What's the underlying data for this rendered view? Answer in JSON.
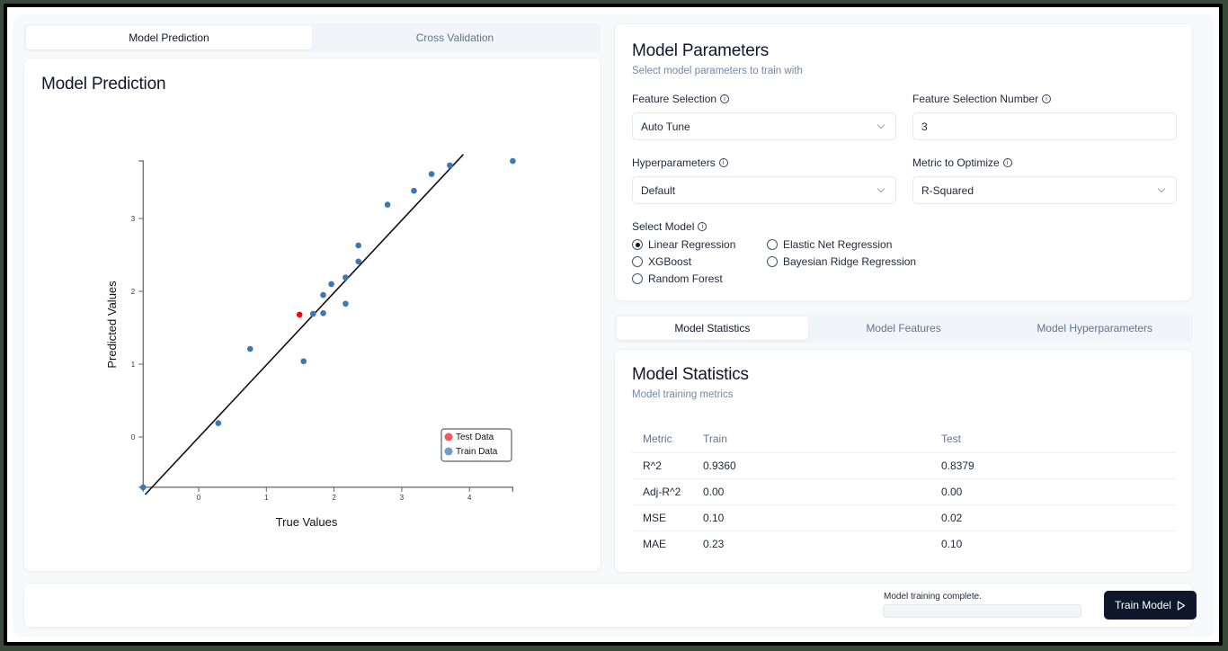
{
  "left_tabs": [
    {
      "label": "Model Prediction",
      "active": true
    },
    {
      "label": "Cross Validation",
      "active": false
    }
  ],
  "prediction_card": {
    "title": "Model Prediction"
  },
  "chart_data": {
    "type": "scatter",
    "title": "Model Prediction",
    "xlabel": "True Values",
    "ylabel": "Predicted Values",
    "x_ticks": [
      0,
      1,
      2,
      3,
      4
    ],
    "y_ticks": [
      0,
      1,
      2,
      3
    ],
    "xlim": [
      -0.82,
      4.64
    ],
    "ylim": [
      -0.69,
      3.79
    ],
    "grid": false,
    "legend_position": "lower right",
    "legend": [
      {
        "label": "Test Data",
        "color": "#f05a5a"
      },
      {
        "label": "Train Data",
        "color": "#6f9dcb"
      }
    ],
    "series": [
      {
        "name": "Train Data",
        "color": "#3b78b5",
        "points": [
          [
            -0.82,
            -0.69
          ],
          [
            0.29,
            0.19
          ],
          [
            0.76,
            1.21
          ],
          [
            1.55,
            1.04
          ],
          [
            1.69,
            1.69
          ],
          [
            1.84,
            1.7
          ],
          [
            1.84,
            1.95
          ],
          [
            1.96,
            2.1
          ],
          [
            2.17,
            1.83
          ],
          [
            2.17,
            2.19
          ],
          [
            2.36,
            2.41
          ],
          [
            2.36,
            2.63
          ],
          [
            2.79,
            3.19
          ],
          [
            3.18,
            3.38
          ],
          [
            3.44,
            3.61
          ],
          [
            3.71,
            3.73
          ],
          [
            4.64,
            3.79
          ]
        ]
      },
      {
        "name": "Test Data",
        "color": "#ff0000",
        "points": [
          [
            1.49,
            1.68
          ]
        ]
      }
    ],
    "reference_line": {
      "from": [
        -0.79,
        -0.79
      ],
      "to": [
        3.91,
        3.88
      ],
      "color": "#111111"
    }
  },
  "params": {
    "title": "Model Parameters",
    "subtitle": "Select model parameters to train with",
    "feature_selection": {
      "label": "Feature Selection",
      "value": "Auto Tune"
    },
    "feature_selection_number": {
      "label": "Feature Selection Number",
      "value": "3"
    },
    "hyperparameters": {
      "label": "Hyperparameters",
      "value": "Default"
    },
    "metric": {
      "label": "Metric to Optimize",
      "value": "R-Squared"
    },
    "select_model": {
      "label": "Select Model",
      "options": [
        {
          "label": "Linear Regression",
          "checked": true
        },
        {
          "label": "XGBoost",
          "checked": false
        },
        {
          "label": "Random Forest",
          "checked": false
        },
        {
          "label": "Elastic Net Regression",
          "checked": false
        },
        {
          "label": "Bayesian Ridge Regression",
          "checked": false
        }
      ]
    },
    "info_glyph": "i"
  },
  "right_tabs": [
    {
      "label": "Model Statistics",
      "active": true
    },
    {
      "label": "Model Features",
      "active": false
    },
    {
      "label": "Model Hyperparameters",
      "active": false
    }
  ],
  "stats": {
    "title": "Model Statistics",
    "subtitle": "Model training metrics",
    "columns": [
      "Metric",
      "Train",
      "Test"
    ],
    "rows": [
      [
        "R^2",
        "0.9360",
        "0.8379"
      ],
      [
        "Adj-R^2",
        "0.00",
        "0.00"
      ],
      [
        "MSE",
        "0.10",
        "0.02"
      ],
      [
        "MAE",
        "0.23",
        "0.10"
      ]
    ]
  },
  "footer": {
    "status": "Model training complete.",
    "progress": 0,
    "train_button": "Train Model"
  }
}
